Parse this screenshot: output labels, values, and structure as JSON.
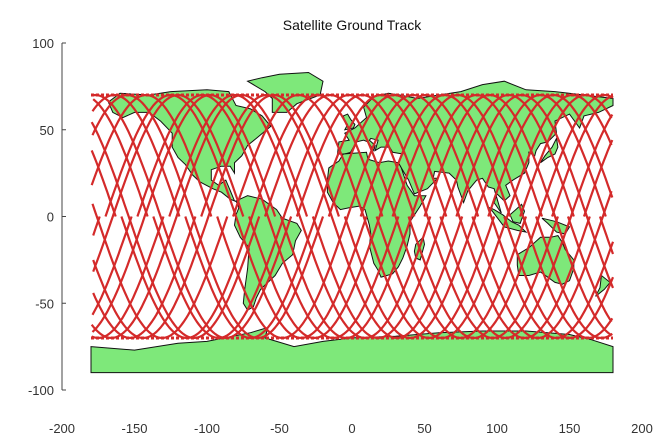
{
  "chart_data": {
    "type": "line",
    "title": "Satellite Ground Track",
    "xlabel": "",
    "ylabel": "",
    "xlim": [
      -200,
      200
    ],
    "ylim": [
      -100,
      100
    ],
    "x_ticks": [
      "-200",
      "-150",
      "-100",
      "-50",
      "0",
      "50",
      "100",
      "150",
      "200"
    ],
    "y_ticks": [
      "100",
      "50",
      "0",
      "-50",
      "-100"
    ],
    "grid": false,
    "legend": "none",
    "colors": {
      "track": "#d42a2a",
      "land": "#7ee87a",
      "coast": "#111111"
    },
    "series": [
      {
        "inclination_deg": 70,
        "lon_range": [
          -180,
          180
        ],
        "ascending_node_crossings_lon": [
          -170,
          -148,
          -126,
          -104,
          -82,
          -60,
          -38,
          -16,
          6,
          28,
          50,
          72,
          94,
          116,
          138,
          160
        ],
        "descending_node_crossings_lon": [
          -159,
          -137,
          -115,
          -93,
          -71,
          -49,
          -27,
          -5,
          17,
          39,
          61,
          83,
          105,
          127,
          149,
          171
        ]
      }
    ]
  }
}
